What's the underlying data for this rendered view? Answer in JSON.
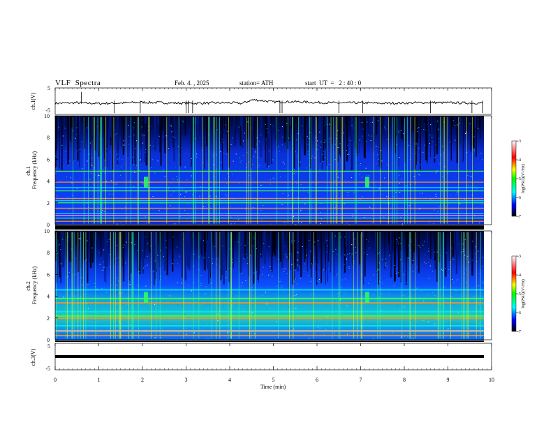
{
  "header": {
    "title": "VLF  Spectra",
    "date": "Feb. 4. , 2025",
    "station": "station= ATH",
    "start": "start  UT  =   2 : 40 : 0"
  },
  "chart_data": [
    {
      "type": "line",
      "panel": "ch1-waveform",
      "ylabel": "ch.1(V)",
      "yticks": [
        "5",
        "-5"
      ],
      "ylim": [
        -5,
        5
      ],
      "xlim": [
        0,
        10
      ],
      "series": [
        {
          "x": [
            0.0,
            0.5,
            1.0,
            1.5,
            2.0,
            2.5,
            3.0,
            3.5,
            4.0,
            4.3,
            4.5,
            4.7,
            5.0,
            5.5,
            6.0,
            6.5,
            7.0,
            7.5,
            8.0,
            8.5,
            9.0,
            9.5,
            9.8
          ],
          "values": [
            -0.8,
            -0.6,
            -0.9,
            -0.7,
            -0.4,
            -0.6,
            -0.8,
            -0.7,
            -0.6,
            -0.8,
            0.5,
            0.3,
            -0.3,
            -0.2,
            -0.5,
            -0.7,
            -0.6,
            -0.8,
            -0.7,
            -0.5,
            -0.6,
            -0.7,
            -0.7
          ]
        }
      ]
    },
    {
      "type": "heatmap",
      "panel": "ch1-spectrogram",
      "ylabel": "ch.1\nFrequency (kHz)",
      "yticks": [
        "0",
        "2",
        "4",
        "6",
        "8",
        "10"
      ],
      "ylim": [
        0,
        10
      ],
      "xlim": [
        0,
        9.8
      ],
      "colorbar": {
        "label": "log(PSD)(V²/Hz)",
        "ticks": [
          "-3",
          "-4",
          "-5",
          "-6",
          "-7"
        ],
        "range": [
          -7,
          -3
        ]
      },
      "bands_khz": [
        0.3,
        0.6,
        1.0,
        1.5,
        2.0,
        2.2,
        2.4,
        3.1,
        3.4,
        3.9,
        4.9
      ]
    },
    {
      "type": "heatmap",
      "panel": "ch2-spectrogram",
      "ylabel": "ch.2\nFrequency (kHz)",
      "yticks": [
        "0",
        "2",
        "4",
        "6",
        "8",
        "10"
      ],
      "ylim": [
        0,
        10
      ],
      "xlim": [
        0,
        9.8
      ],
      "colorbar": {
        "label": "log(PSD)(V²/Hz)",
        "ticks": [
          "-3",
          "-4",
          "-5",
          "-6",
          "-7"
        ],
        "range": [
          -7,
          -3
        ]
      },
      "bands_khz": [
        0.4,
        0.8,
        1.3,
        2.0,
        2.2,
        2.6,
        3.4,
        3.8,
        4.6
      ]
    },
    {
      "type": "line",
      "panel": "ch3-waveform",
      "ylabel": "ch.3(V)",
      "yticks": [
        "5",
        "-5"
      ],
      "ylim": [
        -5,
        5
      ],
      "xlim": [
        0,
        10
      ],
      "series": [
        {
          "x": [
            0.0,
            9.8
          ],
          "values": [
            -1.5,
            -1.5
          ]
        }
      ]
    }
  ],
  "xaxis": {
    "label": "Time  (min)",
    "ticks": [
      "0",
      "1",
      "2",
      "3",
      "4",
      "5",
      "6",
      "7",
      "8",
      "9",
      "10"
    ]
  },
  "colors": {
    "spectro_low": "#000040",
    "spectro_mid": "#0a3cff",
    "spectro_high": "#ff0000",
    "colorbar_stops": [
      "#000000",
      "#0000ff",
      "#00ffff",
      "#00ff00",
      "#ffff00",
      "#ff0000",
      "#ffffff"
    ]
  }
}
